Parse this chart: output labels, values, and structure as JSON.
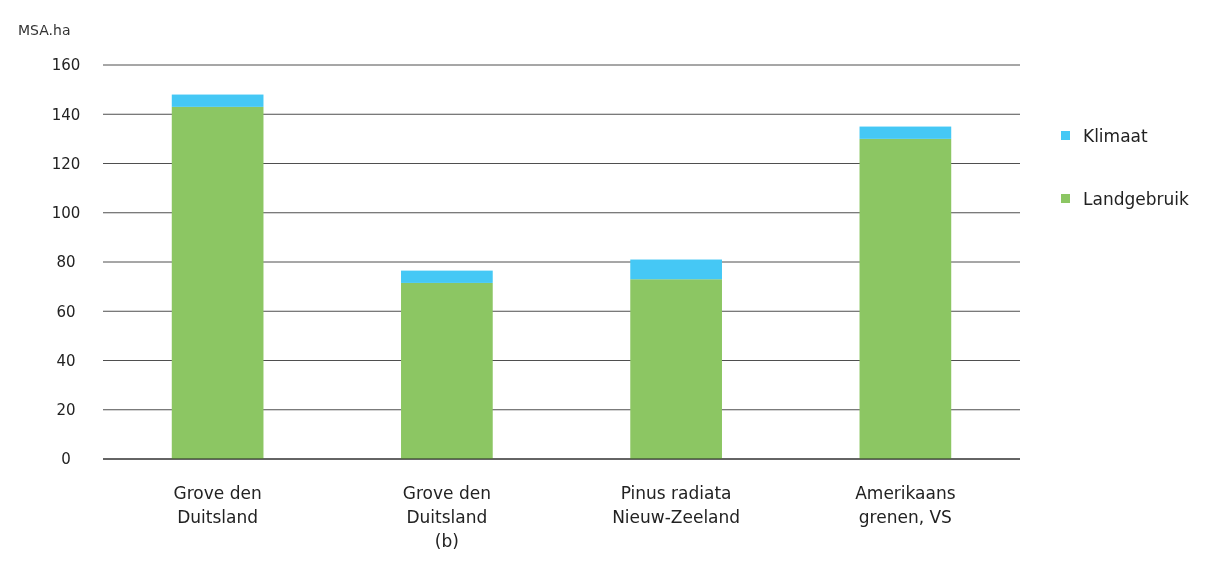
{
  "chart_data": {
    "type": "bar",
    "ylabel": "MSA.ha",
    "stacked": true,
    "categories": [
      "Grove den\nDuitsland",
      "Grove den\nDuitsland\n(b)",
      "Pinus radiata\nNieuw-Zeeland",
      "Amerikaans\ngrenen, VS"
    ],
    "series": [
      {
        "name": "Landgebruik",
        "color": "#8cc663",
        "values": [
          143,
          71.5,
          73,
          130
        ]
      },
      {
        "name": "Klimaat",
        "color": "#45c8f5",
        "values": [
          5,
          5,
          8,
          5
        ]
      }
    ],
    "ylim": [
      0,
      160
    ],
    "yticks": [
      0,
      20,
      40,
      60,
      80,
      100,
      120,
      140,
      160
    ],
    "grid": "y",
    "legend": "right"
  }
}
